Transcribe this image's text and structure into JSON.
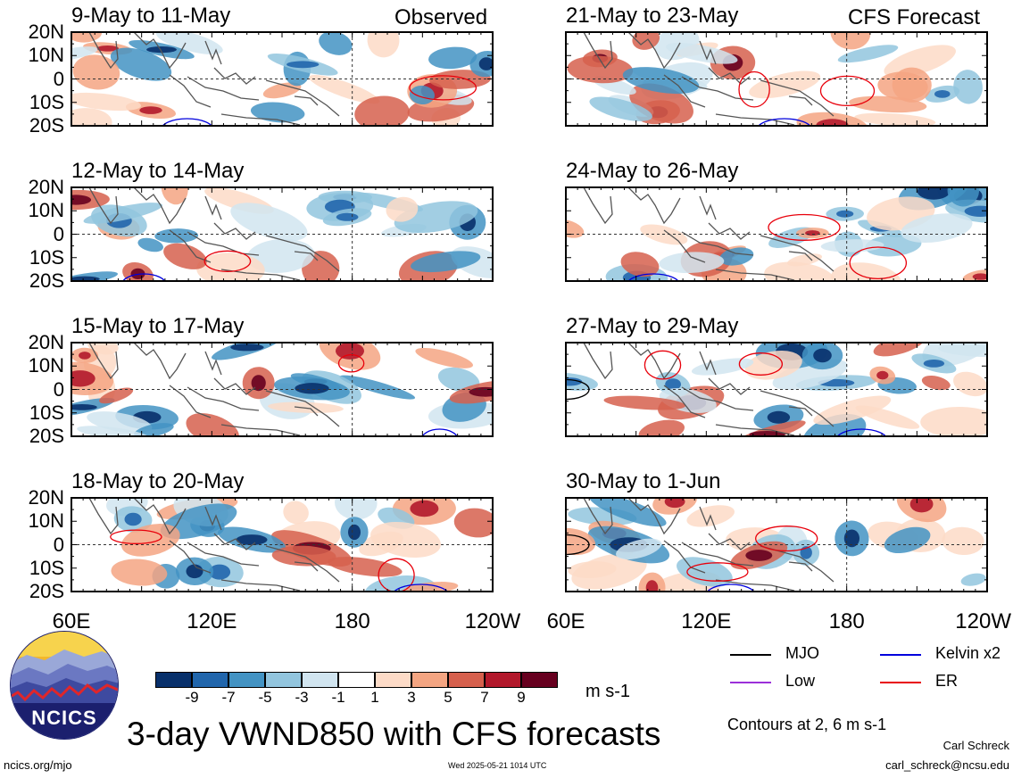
{
  "header": {
    "left_tag": "Observed",
    "right_tag": "CFS Forecast"
  },
  "chart_data": {
    "type": "heatmap",
    "title": "3-day VWND850 with CFS forecasts",
    "y_ticks": [
      "20N",
      "10N",
      "0",
      "10S",
      "20S"
    ],
    "x_ticks": [
      "60E",
      "120E",
      "180",
      "120W"
    ],
    "ylim": [
      -20,
      20
    ],
    "xlim": [
      60,
      240
    ],
    "units": "m s-1",
    "colorbar": {
      "ticks": [
        "-9",
        "-7",
        "-5",
        "-3",
        "-1",
        "1",
        "3",
        "5",
        "7",
        "9"
      ],
      "colors": [
        "#08306b",
        "#2166ac",
        "#4393c3",
        "#92c5de",
        "#d1e5f0",
        "#ffffff",
        "#fddbc7",
        "#f4a582",
        "#d6604d",
        "#b2182b",
        "#67001f"
      ]
    },
    "contours_note": "Contours at 2, 6 m s-1",
    "legend": [
      {
        "name": "MJO",
        "color": "#000000"
      },
      {
        "name": "Kelvin x2",
        "color": "#0000dd"
      },
      {
        "name": "Low",
        "color": "#9b30d9"
      },
      {
        "name": "ER",
        "color": "#e8000b"
      }
    ],
    "panels": [
      {
        "label": "9-May to 11-May",
        "column": "observed",
        "row": 0
      },
      {
        "label": "12-May to 14-May",
        "column": "observed",
        "row": 1
      },
      {
        "label": "15-May to 17-May",
        "column": "observed",
        "row": 2
      },
      {
        "label": "18-May to 20-May",
        "column": "observed",
        "row": 3
      },
      {
        "label": "21-May to 23-May",
        "column": "forecast",
        "row": 0
      },
      {
        "label": "24-May to 26-May",
        "column": "forecast",
        "row": 1
      },
      {
        "label": "27-May to 29-May",
        "column": "forecast",
        "row": 2
      },
      {
        "label": "30-May to 1-Jun",
        "column": "forecast",
        "row": 3
      }
    ]
  },
  "footer": {
    "logo_text": "NCICS",
    "site": "ncics.org/mjo",
    "timestamp": "Wed 2025-05-21 1014 UTC",
    "author": "Carl Schreck",
    "email": "carl_schreck@ncsu.edu"
  }
}
